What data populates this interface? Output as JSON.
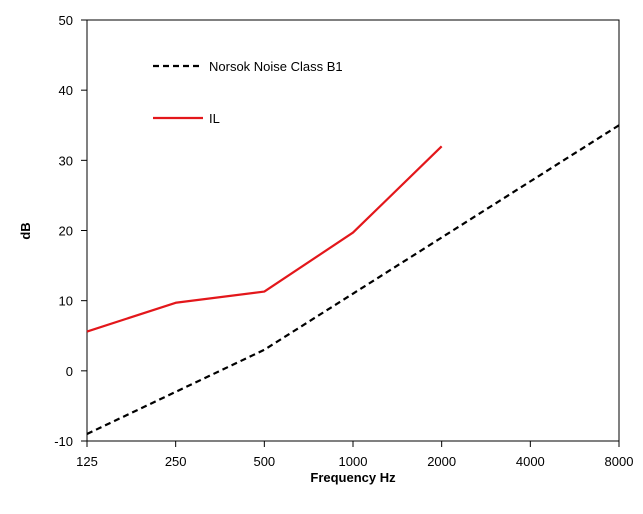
{
  "chart_data": {
    "type": "line",
    "title": "",
    "xlabel": "Frequency Hz",
    "ylabel": "dB",
    "x_categories": [
      "125",
      "250",
      "500",
      "1000",
      "2000",
      "4000",
      "8000"
    ],
    "ylim": [
      -10,
      50
    ],
    "yticks": [
      "-10",
      "0",
      "10",
      "20",
      "30",
      "40",
      "50"
    ],
    "grid": false,
    "legend_position": "top-left inside plot",
    "series": [
      {
        "name": "Norsok Noise Class B1",
        "color": "#000000",
        "style": "dashed",
        "points": [
          [
            125,
            -9
          ],
          [
            250,
            -3
          ],
          [
            500,
            3
          ],
          [
            1000,
            11
          ],
          [
            2000,
            19
          ],
          [
            4000,
            27
          ],
          [
            8000,
            35
          ]
        ]
      },
      {
        "name": "IL",
        "color": "#e3171b",
        "style": "solid",
        "points": [
          [
            125,
            5.6
          ],
          [
            250,
            9.7
          ],
          [
            500,
            11.3
          ],
          [
            1000,
            19.7
          ],
          [
            2000,
            32
          ]
        ]
      }
    ]
  }
}
